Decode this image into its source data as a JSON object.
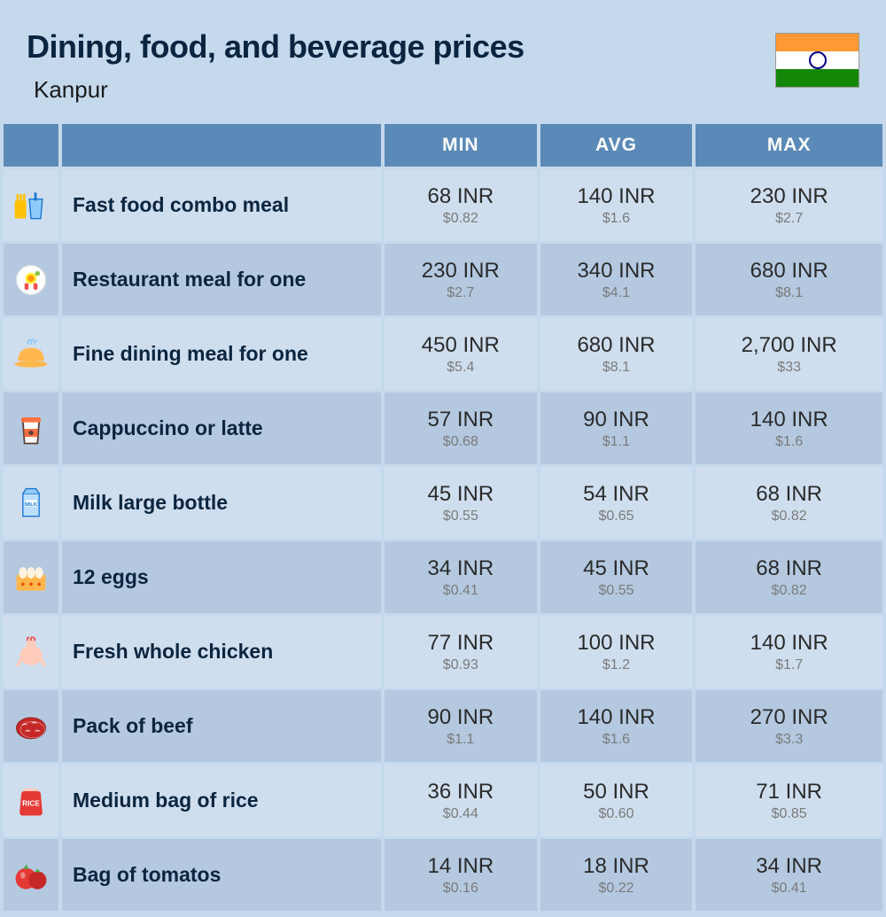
{
  "header": {
    "title": "Dining, food, and beverage prices",
    "subtitle": "Kanpur"
  },
  "columns": [
    "MIN",
    "AVG",
    "MAX"
  ],
  "colors": {
    "background": "#c5d9ed",
    "header_bg": "#5b8ab8",
    "header_text": "#ffffff",
    "row_odd": "#cfdeee",
    "row_even": "#b4c9e0",
    "title_color": "#0a2540",
    "price_main": "#2a2a2a",
    "price_sub": "#7a7a7a"
  },
  "typography": {
    "title_fontsize": 36,
    "subtitle_fontsize": 26,
    "header_fontsize": 21,
    "name_fontsize": 23,
    "price_main_fontsize": 24,
    "price_sub_fontsize": 16
  },
  "flag": {
    "saffron": "#ff9933",
    "white": "#ffffff",
    "green": "#138808",
    "chakra": "#000080"
  },
  "rows": [
    {
      "icon": "fast-food-icon",
      "name": "Fast food combo meal",
      "min_inr": "68 INR",
      "min_usd": "$0.82",
      "avg_inr": "140 INR",
      "avg_usd": "$1.6",
      "max_inr": "230 INR",
      "max_usd": "$2.7"
    },
    {
      "icon": "restaurant-icon",
      "name": "Restaurant meal for one",
      "min_inr": "230 INR",
      "min_usd": "$2.7",
      "avg_inr": "340 INR",
      "avg_usd": "$4.1",
      "max_inr": "680 INR",
      "max_usd": "$8.1"
    },
    {
      "icon": "fine-dining-icon",
      "name": "Fine dining meal for one",
      "min_inr": "450 INR",
      "min_usd": "$5.4",
      "avg_inr": "680 INR",
      "avg_usd": "$8.1",
      "max_inr": "2,700 INR",
      "max_usd": "$33"
    },
    {
      "icon": "coffee-icon",
      "name": "Cappuccino or latte",
      "min_inr": "57 INR",
      "min_usd": "$0.68",
      "avg_inr": "90 INR",
      "avg_usd": "$1.1",
      "max_inr": "140 INR",
      "max_usd": "$1.6"
    },
    {
      "icon": "milk-icon",
      "name": "Milk large bottle",
      "min_inr": "45 INR",
      "min_usd": "$0.55",
      "avg_inr": "54 INR",
      "avg_usd": "$0.65",
      "max_inr": "68 INR",
      "max_usd": "$0.82"
    },
    {
      "icon": "eggs-icon",
      "name": "12 eggs",
      "min_inr": "34 INR",
      "min_usd": "$0.41",
      "avg_inr": "45 INR",
      "avg_usd": "$0.55",
      "max_inr": "68 INR",
      "max_usd": "$0.82"
    },
    {
      "icon": "chicken-icon",
      "name": "Fresh whole chicken",
      "min_inr": "77 INR",
      "min_usd": "$0.93",
      "avg_inr": "100 INR",
      "avg_usd": "$1.2",
      "max_inr": "140 INR",
      "max_usd": "$1.7"
    },
    {
      "icon": "beef-icon",
      "name": "Pack of beef",
      "min_inr": "90 INR",
      "min_usd": "$1.1",
      "avg_inr": "140 INR",
      "avg_usd": "$1.6",
      "max_inr": "270 INR",
      "max_usd": "$3.3"
    },
    {
      "icon": "rice-icon",
      "name": "Medium bag of rice",
      "min_inr": "36 INR",
      "min_usd": "$0.44",
      "avg_inr": "50 INR",
      "avg_usd": "$0.60",
      "max_inr": "71 INR",
      "max_usd": "$0.85"
    },
    {
      "icon": "tomato-icon",
      "name": "Bag of tomatos",
      "min_inr": "14 INR",
      "min_usd": "$0.16",
      "avg_inr": "18 INR",
      "avg_usd": "$0.22",
      "max_inr": "34 INR",
      "max_usd": "$0.41"
    }
  ]
}
